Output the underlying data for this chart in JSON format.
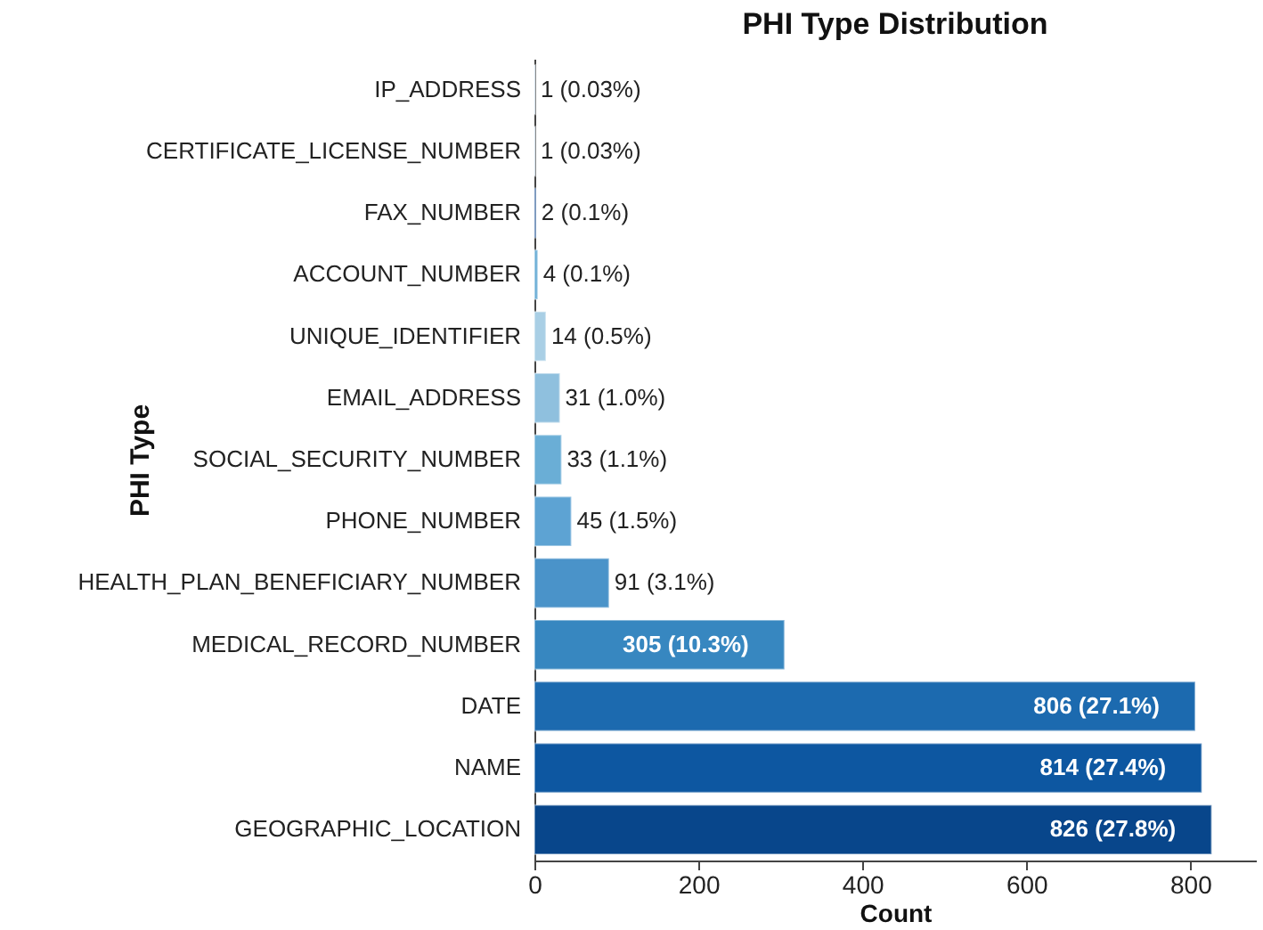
{
  "chart_data": {
    "type": "bar",
    "orientation": "horizontal",
    "title": "PHI Type Distribution",
    "xlabel": "Count",
    "ylabel": "PHI Type",
    "categories": [
      "IP_ADDRESS",
      "CERTIFICATE_LICENSE_NUMBER",
      "FAX_NUMBER",
      "ACCOUNT_NUMBER",
      "UNIQUE_IDENTIFIER",
      "EMAIL_ADDRESS",
      "SOCIAL_SECURITY_NUMBER",
      "PHONE_NUMBER",
      "HEALTH_PLAN_BENEFICIARY_NUMBER",
      "MEDICAL_RECORD_NUMBER",
      "DATE",
      "NAME",
      "GEOGRAPHIC_LOCATION"
    ],
    "values": [
      1,
      1,
      2,
      4,
      14,
      31,
      33,
      45,
      91,
      305,
      806,
      814,
      826
    ],
    "value_labels": [
      "1 (0.03%)",
      "1 (0.03%)",
      "2 (0.1%)",
      "4 (0.1%)",
      "14 (0.5%)",
      "31 (1.0%)",
      "33 (1.1%)",
      "45 (1.5%)",
      "91 (3.1%)",
      "305 (10.3%)",
      "806 (27.1%)",
      "814 (27.4%)",
      "826 (27.8%)"
    ],
    "colors": [
      "#c6dbef",
      "#c6dbef",
      "#2a5d9f",
      "#6baed6",
      "#a9cfe5",
      "#8fc0de",
      "#6aaed6",
      "#5da3d3",
      "#4a93c9",
      "#3787c0",
      "#1c6aaf",
      "#0d57a1",
      "#08468b"
    ],
    "xlim": [
      0,
      880
    ],
    "xticks": [
      0,
      200,
      400,
      600,
      800
    ],
    "grid": false
  }
}
